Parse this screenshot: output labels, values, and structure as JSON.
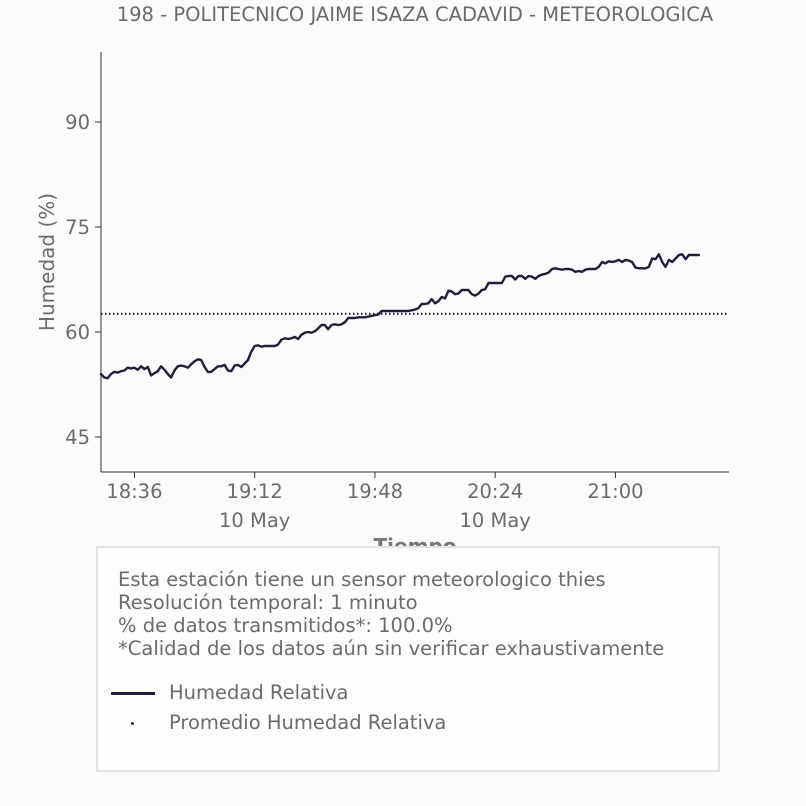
{
  "chart_data": {
    "type": "line",
    "title": "198 - POLITECNICO JAIME ISAZA CADAVID - METEOROLOGICA",
    "xlabel": "Tiempo",
    "ylabel": "Humedad (%)",
    "ylim": [
      40,
      100
    ],
    "yticks": [
      45,
      60,
      75,
      90
    ],
    "xlim": [
      "18:26",
      "21:34"
    ],
    "xticks": [
      {
        "time": "18:36",
        "label": "18:36",
        "sublabel": ""
      },
      {
        "time": "19:12",
        "label": "19:12",
        "sublabel": "10 May"
      },
      {
        "time": "19:48",
        "label": "19:48",
        "sublabel": ""
      },
      {
        "time": "20:24",
        "label": "20:24",
        "sublabel": "10 May"
      },
      {
        "time": "21:00",
        "label": "21:00",
        "sublabel": ""
      }
    ],
    "grid": false,
    "legend_position": "bottom",
    "series": [
      {
        "name": "Humedad Relativa",
        "style": "line",
        "color": "#1f1f3d",
        "points": [
          [
            "18:26",
            54.0
          ],
          [
            "18:27",
            53.5
          ],
          [
            "18:28",
            53.4
          ],
          [
            "18:29",
            54.0
          ],
          [
            "18:30",
            54.3
          ],
          [
            "18:31",
            54.2
          ],
          [
            "18:32",
            54.4
          ],
          [
            "18:33",
            54.5
          ],
          [
            "18:34",
            54.9
          ],
          [
            "18:35",
            54.8
          ],
          [
            "18:36",
            54.9
          ],
          [
            "18:37",
            54.6
          ],
          [
            "18:38",
            55.1
          ],
          [
            "18:39",
            54.7
          ],
          [
            "18:40",
            55.0
          ],
          [
            "18:41",
            53.8
          ],
          [
            "18:42",
            54.1
          ],
          [
            "18:43",
            54.4
          ],
          [
            "18:44",
            55.1
          ],
          [
            "18:45",
            54.6
          ],
          [
            "18:46",
            54.0
          ],
          [
            "18:47",
            53.5
          ],
          [
            "18:48",
            54.5
          ],
          [
            "18:49",
            55.1
          ],
          [
            "18:50",
            55.2
          ],
          [
            "18:51",
            55.1
          ],
          [
            "18:52",
            54.9
          ],
          [
            "18:53",
            55.4
          ],
          [
            "18:54",
            55.8
          ],
          [
            "18:55",
            56.1
          ],
          [
            "18:56",
            56.0
          ],
          [
            "18:57",
            55.0
          ],
          [
            "18:58",
            54.3
          ],
          [
            "18:59",
            54.3
          ],
          [
            "19:00",
            54.7
          ],
          [
            "19:01",
            55.1
          ],
          [
            "19:02",
            55.1
          ],
          [
            "19:03",
            55.3
          ],
          [
            "19:04",
            54.5
          ],
          [
            "19:05",
            54.4
          ],
          [
            "19:06",
            55.2
          ],
          [
            "19:07",
            55.3
          ],
          [
            "19:08",
            55.0
          ],
          [
            "19:09",
            55.5
          ],
          [
            "19:10",
            56.0
          ],
          [
            "19:11",
            57.2
          ],
          [
            "19:12",
            58.0
          ],
          [
            "19:13",
            58.1
          ],
          [
            "19:14",
            57.9
          ],
          [
            "19:15",
            58.0
          ],
          [
            "19:16",
            58.0
          ],
          [
            "19:17",
            58.0
          ],
          [
            "19:18",
            58.0
          ],
          [
            "19:19",
            58.2
          ],
          [
            "19:20",
            58.9
          ],
          [
            "19:21",
            59.1
          ],
          [
            "19:22",
            59.0
          ],
          [
            "19:23",
            59.1
          ],
          [
            "19:24",
            59.3
          ],
          [
            "19:25",
            59.0
          ],
          [
            "19:26",
            59.6
          ],
          [
            "19:27",
            59.9
          ],
          [
            "19:28",
            60.0
          ],
          [
            "19:29",
            59.9
          ],
          [
            "19:30",
            60.1
          ],
          [
            "19:31",
            60.5
          ],
          [
            "19:32",
            61.0
          ],
          [
            "19:33",
            61.0
          ],
          [
            "19:34",
            60.4
          ],
          [
            "19:35",
            61.0
          ],
          [
            "19:36",
            61.1
          ],
          [
            "19:37",
            61.0
          ],
          [
            "19:38",
            61.1
          ],
          [
            "19:39",
            61.4
          ],
          [
            "19:40",
            62.0
          ],
          [
            "19:41",
            62.0
          ],
          [
            "19:42",
            62.0
          ],
          [
            "19:43",
            62.1
          ],
          [
            "19:44",
            62.1
          ],
          [
            "19:45",
            62.1
          ],
          [
            "19:46",
            62.2
          ],
          [
            "19:47",
            62.3
          ],
          [
            "19:48",
            62.4
          ],
          [
            "19:49",
            62.5
          ],
          [
            "19:50",
            63.0
          ],
          [
            "19:51",
            63.0
          ],
          [
            "19:52",
            63.0
          ],
          [
            "19:53",
            63.0
          ],
          [
            "19:54",
            63.0
          ],
          [
            "19:55",
            63.0
          ],
          [
            "19:56",
            63.0
          ],
          [
            "19:57",
            63.0
          ],
          [
            "19:58",
            63.0
          ],
          [
            "19:59",
            63.1
          ],
          [
            "20:00",
            63.2
          ],
          [
            "20:01",
            63.4
          ],
          [
            "20:02",
            64.0
          ],
          [
            "20:03",
            64.0
          ],
          [
            "20:04",
            64.1
          ],
          [
            "20:05",
            64.7
          ],
          [
            "20:06",
            64.1
          ],
          [
            "20:07",
            64.4
          ],
          [
            "20:08",
            65.0
          ],
          [
            "20:09",
            64.8
          ],
          [
            "20:10",
            65.9
          ],
          [
            "20:11",
            65.8
          ],
          [
            "20:12",
            65.4
          ],
          [
            "20:13",
            65.5
          ],
          [
            "20:14",
            66.0
          ],
          [
            "20:15",
            66.0
          ],
          [
            "20:16",
            66.0
          ],
          [
            "20:17",
            65.4
          ],
          [
            "20:18",
            65.2
          ],
          [
            "20:19",
            65.5
          ],
          [
            "20:20",
            66.0
          ],
          [
            "20:21",
            66.1
          ],
          [
            "20:22",
            67.0
          ],
          [
            "20:23",
            67.0
          ],
          [
            "20:24",
            67.0
          ],
          [
            "20:25",
            67.0
          ],
          [
            "20:26",
            67.0
          ],
          [
            "20:27",
            67.9
          ],
          [
            "20:28",
            68.0
          ],
          [
            "20:29",
            68.0
          ],
          [
            "20:30",
            67.5
          ],
          [
            "20:31",
            68.0
          ],
          [
            "20:32",
            68.0
          ],
          [
            "20:33",
            67.6
          ],
          [
            "20:34",
            68.0
          ],
          [
            "20:35",
            67.9
          ],
          [
            "20:36",
            67.6
          ],
          [
            "20:37",
            68.0
          ],
          [
            "20:38",
            68.2
          ],
          [
            "20:39",
            68.3
          ],
          [
            "20:40",
            68.5
          ],
          [
            "20:41",
            69.0
          ],
          [
            "20:42",
            69.1
          ],
          [
            "20:43",
            69.0
          ],
          [
            "20:44",
            68.9
          ],
          [
            "20:45",
            69.0
          ],
          [
            "20:46",
            69.0
          ],
          [
            "20:47",
            68.9
          ],
          [
            "20:48",
            68.6
          ],
          [
            "20:49",
            68.7
          ],
          [
            "20:50",
            68.6
          ],
          [
            "20:51",
            68.9
          ],
          [
            "20:52",
            69.0
          ],
          [
            "20:53",
            69.0
          ],
          [
            "20:54",
            69.0
          ],
          [
            "20:55",
            69.3
          ],
          [
            "20:56",
            70.0
          ],
          [
            "20:57",
            69.8
          ],
          [
            "20:58",
            70.1
          ],
          [
            "20:59",
            70.0
          ],
          [
            "21:00",
            70.1
          ],
          [
            "21:01",
            70.3
          ],
          [
            "21:02",
            70.0
          ],
          [
            "21:03",
            70.3
          ],
          [
            "21:04",
            70.2
          ],
          [
            "21:05",
            70.0
          ],
          [
            "21:06",
            69.2
          ],
          [
            "21:07",
            69.1
          ],
          [
            "21:08",
            69.1
          ],
          [
            "21:09",
            69.1
          ],
          [
            "21:10",
            69.3
          ],
          [
            "21:11",
            70.5
          ],
          [
            "21:12",
            70.4
          ],
          [
            "21:13",
            71.1
          ],
          [
            "21:14",
            70.0
          ],
          [
            "21:15",
            69.3
          ],
          [
            "21:16",
            70.3
          ],
          [
            "21:17",
            70.0
          ],
          [
            "21:18",
            70.5
          ],
          [
            "21:19",
            71.0
          ],
          [
            "21:20",
            71.1
          ],
          [
            "21:21",
            70.4
          ],
          [
            "21:22",
            71.0
          ],
          [
            "21:23",
            71.0
          ],
          [
            "21:24",
            71.0
          ],
          [
            "21:25",
            71.0
          ]
        ]
      },
      {
        "name": "Promedio Humedad Relativa",
        "style": "dotted",
        "color": "#1f1f3d",
        "constant": 62.6
      }
    ]
  },
  "info": {
    "lines": [
      "Esta estación tiene un sensor meteorologico thies",
      "Resolución temporal: 1 minuto",
      "% de datos transmitidos*: 100.0%",
      "*Calidad de los datos aún sin verificar exhaustivamente"
    ]
  }
}
